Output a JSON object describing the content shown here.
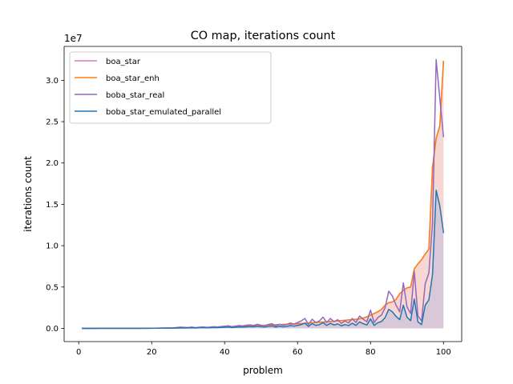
{
  "chart_data": {
    "type": "line",
    "title": "CO map, iterations count",
    "xlabel": "problem",
    "ylabel": "iterations count",
    "y_offset_label": "1e7",
    "xlim": [
      -4,
      105
    ],
    "ylim": [
      -1600000,
      34100000
    ],
    "x_ticks": [
      0,
      20,
      40,
      60,
      80,
      100
    ],
    "x_tick_labels": [
      "0",
      "20",
      "40",
      "60",
      "80",
      "100"
    ],
    "y_ticks": [
      0,
      5000000,
      10000000,
      15000000,
      20000000,
      25000000,
      30000000
    ],
    "y_tick_labels": [
      "0.0",
      "0.5",
      "1.0",
      "1.5",
      "2.0",
      "2.5",
      "3.0"
    ],
    "legend_position": "upper-left",
    "grid": false,
    "fills": [
      {
        "series": "boa_star_enh",
        "color": "#f4c9c3"
      },
      {
        "series": "boba_star_emulated_parallel",
        "color": "#cfc3d9"
      }
    ],
    "series": [
      {
        "name": "boa_star",
        "color": "#e377c2",
        "x": [
          1,
          2,
          3,
          4,
          5,
          6,
          7,
          8,
          9,
          10,
          11,
          12,
          13,
          14,
          15,
          16,
          17,
          18,
          19,
          20,
          21,
          22,
          23,
          24,
          25,
          26,
          27,
          28,
          29,
          30,
          31,
          32,
          33,
          34,
          35,
          36,
          37,
          38,
          39,
          40,
          41,
          42,
          43,
          44,
          45,
          46,
          47,
          48,
          49,
          50,
          51,
          52,
          53,
          54,
          55,
          56,
          57,
          58,
          59,
          60,
          61,
          62,
          63,
          64,
          65,
          66,
          67,
          68,
          69,
          70,
          71,
          72,
          73,
          74,
          75,
          76,
          77,
          78,
          79,
          80,
          81,
          82,
          83,
          84,
          85,
          86,
          87,
          88,
          89,
          90,
          91,
          92,
          93,
          94,
          95,
          96,
          97,
          98,
          99,
          100
        ],
        "values": [
          2000,
          2000,
          2000,
          2000,
          3000,
          3000,
          3000,
          4000,
          4000,
          5000,
          5000,
          6000,
          6000,
          7000,
          8000,
          9000,
          10000,
          12000,
          14000,
          16000,
          18000,
          20000,
          23000,
          26000,
          30000,
          34000,
          38000,
          43000,
          48000,
          54000,
          60000,
          68000,
          76000,
          85000,
          95000,
          105000,
          118000,
          130000,
          145000,
          160000,
          175000,
          190000,
          210000,
          230000,
          250000,
          270000,
          290000,
          310000,
          330000,
          350000,
          370000,
          390000,
          410000,
          430000,
          450000,
          470000,
          490000,
          510000,
          530000,
          560000,
          590000,
          620000,
          650000,
          680000,
          710000,
          740000,
          770000,
          800000,
          830000,
          860000,
          900000,
          940000,
          980000,
          1020000,
          1060000,
          1100000,
          1150000,
          1250000,
          1400000,
          1600000,
          1800000,
          2000000,
          2300000,
          2800000,
          3100000,
          3200000,
          3500000,
          4200000,
          4600000,
          4900000,
          5000000,
          7200000,
          7800000,
          8300000,
          9000000,
          9600000,
          19500000,
          23000000,
          24500000,
          32300000
        ]
      },
      {
        "name": "boa_star_enh",
        "color": "#ff7f0e",
        "x": [
          1,
          2,
          3,
          4,
          5,
          6,
          7,
          8,
          9,
          10,
          11,
          12,
          13,
          14,
          15,
          16,
          17,
          18,
          19,
          20,
          21,
          22,
          23,
          24,
          25,
          26,
          27,
          28,
          29,
          30,
          31,
          32,
          33,
          34,
          35,
          36,
          37,
          38,
          39,
          40,
          41,
          42,
          43,
          44,
          45,
          46,
          47,
          48,
          49,
          50,
          51,
          52,
          53,
          54,
          55,
          56,
          57,
          58,
          59,
          60,
          61,
          62,
          63,
          64,
          65,
          66,
          67,
          68,
          69,
          70,
          71,
          72,
          73,
          74,
          75,
          76,
          77,
          78,
          79,
          80,
          81,
          82,
          83,
          84,
          85,
          86,
          87,
          88,
          89,
          90,
          91,
          92,
          93,
          94,
          95,
          96,
          97,
          98,
          99,
          100
        ],
        "values": [
          2000,
          2000,
          2000,
          2000,
          3000,
          3000,
          3000,
          4000,
          4000,
          5000,
          5000,
          6000,
          6000,
          7000,
          8000,
          9000,
          10000,
          12000,
          14000,
          16000,
          18000,
          20000,
          23000,
          26000,
          30000,
          34000,
          38000,
          43000,
          48000,
          54000,
          60000,
          68000,
          76000,
          85000,
          95000,
          105000,
          118000,
          130000,
          145000,
          160000,
          175000,
          190000,
          210000,
          230000,
          250000,
          270000,
          290000,
          310000,
          330000,
          350000,
          370000,
          390000,
          410000,
          430000,
          450000,
          470000,
          490000,
          510000,
          530000,
          560000,
          590000,
          620000,
          650000,
          680000,
          710000,
          740000,
          770000,
          800000,
          830000,
          860000,
          900000,
          940000,
          980000,
          1020000,
          1060000,
          1100000,
          1150000,
          1250000,
          1400000,
          1600000,
          1800000,
          2000000,
          2300000,
          2800000,
          3100000,
          3200000,
          3500000,
          4200000,
          4600000,
          4900000,
          5000000,
          7200000,
          7800000,
          8300000,
          9000000,
          9600000,
          19500000,
          23000000,
          24500000,
          32300000
        ]
      },
      {
        "name": "boba_star_real",
        "color": "#9467bd",
        "x": [
          1,
          2,
          3,
          4,
          5,
          6,
          7,
          8,
          9,
          10,
          11,
          12,
          13,
          14,
          15,
          16,
          17,
          18,
          19,
          20,
          21,
          22,
          23,
          24,
          25,
          26,
          27,
          28,
          29,
          30,
          31,
          32,
          33,
          34,
          35,
          36,
          37,
          38,
          39,
          40,
          41,
          42,
          43,
          44,
          45,
          46,
          47,
          48,
          49,
          50,
          51,
          52,
          53,
          54,
          55,
          56,
          57,
          58,
          59,
          60,
          61,
          62,
          63,
          64,
          65,
          66,
          67,
          68,
          69,
          70,
          71,
          72,
          73,
          74,
          75,
          76,
          77,
          78,
          79,
          80,
          81,
          82,
          83,
          84,
          85,
          86,
          87,
          88,
          89,
          90,
          91,
          92,
          93,
          94,
          95,
          96,
          97,
          98,
          99,
          100
        ],
        "values": [
          3000,
          3000,
          3000,
          3000,
          4000,
          4000,
          4000,
          5000,
          5000,
          6000,
          6000,
          7000,
          8000,
          9000,
          10000,
          11000,
          13000,
          15000,
          18000,
          22000,
          26000,
          35000,
          50000,
          60000,
          40000,
          70000,
          110000,
          150000,
          120000,
          100000,
          160000,
          90000,
          140000,
          170000,
          130000,
          150000,
          200000,
          170000,
          220000,
          260000,
          310000,
          200000,
          280000,
          350000,
          300000,
          380000,
          420000,
          360000,
          500000,
          390000,
          320000,
          480000,
          560000,
          300000,
          500000,
          380000,
          450000,
          650000,
          520000,
          700000,
          900000,
          1200000,
          450000,
          1100000,
          700000,
          900000,
          1350000,
          700000,
          1200000,
          800000,
          1050000,
          600000,
          900000,
          650000,
          1200000,
          700000,
          1500000,
          1100000,
          800000,
          2200000,
          700000,
          1300000,
          1600000,
          2500000,
          4500000,
          3900000,
          2800000,
          2000000,
          5500000,
          2600000,
          1800000,
          6900000,
          1500000,
          900000,
          5400000,
          6700000,
          12700000,
          32500000,
          27800000,
          23200000
        ]
      },
      {
        "name": "boba_star_emulated_parallel",
        "color": "#1f77b4",
        "x": [
          1,
          2,
          3,
          4,
          5,
          6,
          7,
          8,
          9,
          10,
          11,
          12,
          13,
          14,
          15,
          16,
          17,
          18,
          19,
          20,
          21,
          22,
          23,
          24,
          25,
          26,
          27,
          28,
          29,
          30,
          31,
          32,
          33,
          34,
          35,
          36,
          37,
          38,
          39,
          40,
          41,
          42,
          43,
          44,
          45,
          46,
          47,
          48,
          49,
          50,
          51,
          52,
          53,
          54,
          55,
          56,
          57,
          58,
          59,
          60,
          61,
          62,
          63,
          64,
          65,
          66,
          67,
          68,
          69,
          70,
          71,
          72,
          73,
          74,
          75,
          76,
          77,
          78,
          79,
          80,
          81,
          82,
          83,
          84,
          85,
          86,
          87,
          88,
          89,
          90,
          91,
          92,
          93,
          94,
          95,
          96,
          97,
          98,
          99,
          100
        ],
        "values": [
          2000,
          2000,
          2000,
          2000,
          2000,
          3000,
          3000,
          3000,
          3000,
          4000,
          4000,
          4000,
          5000,
          5000,
          6000,
          7000,
          8000,
          9000,
          11000,
          13000,
          15000,
          20000,
          28000,
          32000,
          25000,
          40000,
          55000,
          75000,
          65000,
          55000,
          85000,
          50000,
          75000,
          90000,
          70000,
          80000,
          105000,
          90000,
          115000,
          135000,
          160000,
          105000,
          145000,
          180000,
          155000,
          195000,
          215000,
          185000,
          260000,
          200000,
          165000,
          245000,
          290000,
          155000,
          260000,
          195000,
          230000,
          335000,
          270000,
          360000,
          460000,
          620000,
          230000,
          570000,
          360000,
          460000,
          700000,
          360000,
          620000,
          410000,
          540000,
          310000,
          460000,
          340000,
          620000,
          360000,
          780000,
          570000,
          410000,
          1150000,
          360000,
          680000,
          830000,
          1300000,
          2300000,
          2000000,
          1450000,
          1050000,
          2800000,
          1350000,
          930000,
          3550000,
          780000,
          460000,
          2800000,
          3450000,
          6500000,
          16700000,
          14800000,
          11600000
        ]
      }
    ]
  }
}
